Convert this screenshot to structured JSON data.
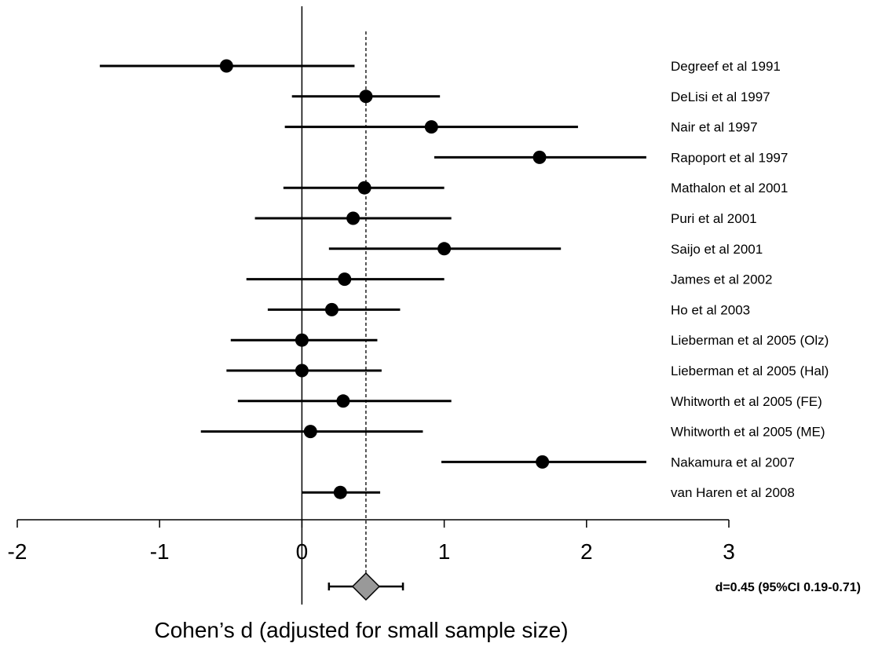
{
  "chart_data": {
    "type": "forest",
    "xlabel": "Cohen’s d (adjusted for small sample size)",
    "xlim": [
      -2,
      3
    ],
    "x_ticks": [
      -2,
      -1,
      0,
      1,
      2,
      3
    ],
    "x_tick_labels": [
      "-2",
      "-1",
      "0",
      "1",
      "2",
      "3"
    ],
    "reference_line": 0,
    "pooled_line": 0.45,
    "studies": [
      {
        "label": "Degreef et al 1991",
        "d": -0.53,
        "lower": -1.42,
        "upper": 0.37
      },
      {
        "label": "DeLisi et al 1997",
        "d": 0.45,
        "lower": -0.07,
        "upper": 0.97
      },
      {
        "label": "Nair et al 1997",
        "d": 0.91,
        "lower": -0.12,
        "upper": 1.94
      },
      {
        "label": "Rapoport et al 1997",
        "d": 1.67,
        "lower": 0.93,
        "upper": 2.42
      },
      {
        "label": "Mathalon et al 2001",
        "d": 0.44,
        "lower": -0.13,
        "upper": 1.0
      },
      {
        "label": "Puri et al 2001",
        "d": 0.36,
        "lower": -0.33,
        "upper": 1.05
      },
      {
        "label": "Saijo et al 2001",
        "d": 1.0,
        "lower": 0.19,
        "upper": 1.82
      },
      {
        "label": "James et al 2002",
        "d": 0.3,
        "lower": -0.39,
        "upper": 1.0
      },
      {
        "label": "Ho et al 2003",
        "d": 0.21,
        "lower": -0.24,
        "upper": 0.69
      },
      {
        "label": "Lieberman et al 2005 (Olz)",
        "d": 0.0,
        "lower": -0.5,
        "upper": 0.53
      },
      {
        "label": "Lieberman et al 2005 (Hal)",
        "d": 0.0,
        "lower": -0.53,
        "upper": 0.56
      },
      {
        "label": "Whitworth et al 2005 (FE)",
        "d": 0.29,
        "lower": -0.45,
        "upper": 1.05
      },
      {
        "label": "Whitworth et al 2005 (ME)",
        "d": 0.06,
        "lower": -0.71,
        "upper": 0.85
      },
      {
        "label": "Nakamura et al 2007",
        "d": 1.69,
        "lower": 0.98,
        "upper": 2.42
      },
      {
        "label": "van Haren et al 2008",
        "d": 0.27,
        "lower": 0.0,
        "upper": 0.55
      }
    ],
    "summary": {
      "d": 0.45,
      "lower": 0.19,
      "upper": 0.71,
      "label": "d=0.45 (95%CI 0.19-0.71)"
    },
    "colors": {
      "marker": "#000000",
      "diamond_fill": "#999999",
      "line": "#000000"
    }
  }
}
